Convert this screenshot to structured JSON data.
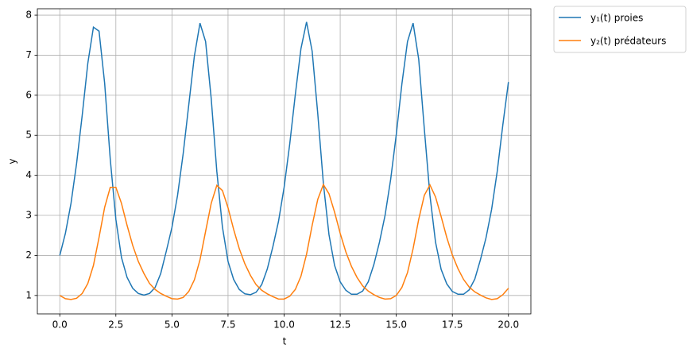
{
  "chart_data": {
    "type": "line",
    "x_label": "t",
    "y_label": "y",
    "x": [
      0,
      0.25,
      0.5,
      0.75,
      1,
      1.25,
      1.5,
      1.75,
      2,
      2.25,
      2.5,
      2.75,
      3,
      3.25,
      3.5,
      3.75,
      4,
      4.25,
      4.5,
      4.75,
      5,
      5.25,
      5.5,
      5.75,
      6,
      6.25,
      6.5,
      6.75,
      7,
      7.25,
      7.5,
      7.75,
      8,
      8.25,
      8.5,
      8.75,
      9,
      9.25,
      9.5,
      9.75,
      10,
      10.25,
      10.5,
      10.75,
      11,
      11.25,
      11.5,
      11.75,
      12,
      12.25,
      12.5,
      12.75,
      13,
      13.25,
      13.5,
      13.75,
      14,
      14.25,
      14.5,
      14.75,
      15,
      15.25,
      15.5,
      15.75,
      16,
      16.25,
      16.5,
      16.75,
      17,
      17.25,
      17.5,
      17.75,
      18,
      18.25,
      18.5,
      18.75,
      19,
      19.25,
      19.5,
      19.75,
      20
    ],
    "series": [
      {
        "name": "y₁(t) proies",
        "color": "#1f77b4",
        "values": [
          2.0,
          2.55,
          3.3,
          4.3,
          5.5,
          6.8,
          7.7,
          7.6,
          6.3,
          4.4,
          2.9,
          1.95,
          1.45,
          1.18,
          1.05,
          1.01,
          1.05,
          1.2,
          1.55,
          2.11,
          2.7,
          3.5,
          4.54,
          5.76,
          6.98,
          7.8,
          7.34,
          5.92,
          4.1,
          2.71,
          1.85,
          1.4,
          1.15,
          1.04,
          1.02,
          1.08,
          1.27,
          1.66,
          2.22,
          2.85,
          3.7,
          4.78,
          6.02,
          7.16,
          7.83,
          7.1,
          5.54,
          3.8,
          2.52,
          1.75,
          1.34,
          1.13,
          1.03,
          1.03,
          1.11,
          1.34,
          1.77,
          2.33,
          3.0,
          3.9,
          5.02,
          6.28,
          7.34,
          7.8,
          6.9,
          5.16,
          3.5,
          2.33,
          1.65,
          1.29,
          1.1,
          1.03,
          1.03,
          1.14,
          1.41,
          1.89,
          2.44,
          3.15,
          4.1,
          5.26,
          6.33
        ]
      },
      {
        "name": "y₂(t) prédateurs",
        "color": "#ff7f0e",
        "values": [
          1.0,
          0.92,
          0.9,
          0.93,
          1.05,
          1.3,
          1.75,
          2.45,
          3.2,
          3.7,
          3.7,
          3.3,
          2.75,
          2.25,
          1.85,
          1.55,
          1.3,
          1.15,
          1.05,
          0.98,
          0.92,
          0.91,
          0.95,
          1.1,
          1.39,
          1.89,
          2.6,
          3.3,
          3.75,
          3.62,
          3.19,
          2.65,
          2.17,
          1.79,
          1.5,
          1.27,
          1.13,
          1.04,
          0.97,
          0.91,
          0.91,
          0.98,
          1.15,
          1.48,
          2.03,
          2.75,
          3.4,
          3.77,
          3.54,
          3.08,
          2.55,
          2.09,
          1.73,
          1.45,
          1.24,
          1.11,
          1.02,
          0.95,
          0.91,
          0.92,
          1.0,
          1.2,
          1.57,
          2.17,
          2.9,
          3.5,
          3.76,
          3.46,
          2.97,
          2.45,
          2.01,
          1.67,
          1.4,
          1.21,
          1.09,
          1.01,
          0.94,
          0.9,
          0.92,
          1.02,
          1.18
        ]
      }
    ],
    "xlim": [
      -1.0,
      21.0
    ],
    "ylim": [
      0.54,
      8.16
    ],
    "xticks": [
      {
        "value": 0,
        "label": "0.0"
      },
      2.5,
      {
        "value": 5,
        "label": "5.0"
      },
      7.5,
      {
        "value": 10,
        "label": "10.0"
      },
      12.5,
      {
        "value": 15,
        "label": "15.0"
      },
      17.5,
      {
        "value": 20,
        "label": "20.0"
      }
    ],
    "yticks": [
      1,
      2,
      3,
      4,
      5,
      6,
      7,
      8
    ],
    "grid": true,
    "legend": "outside upper right"
  }
}
